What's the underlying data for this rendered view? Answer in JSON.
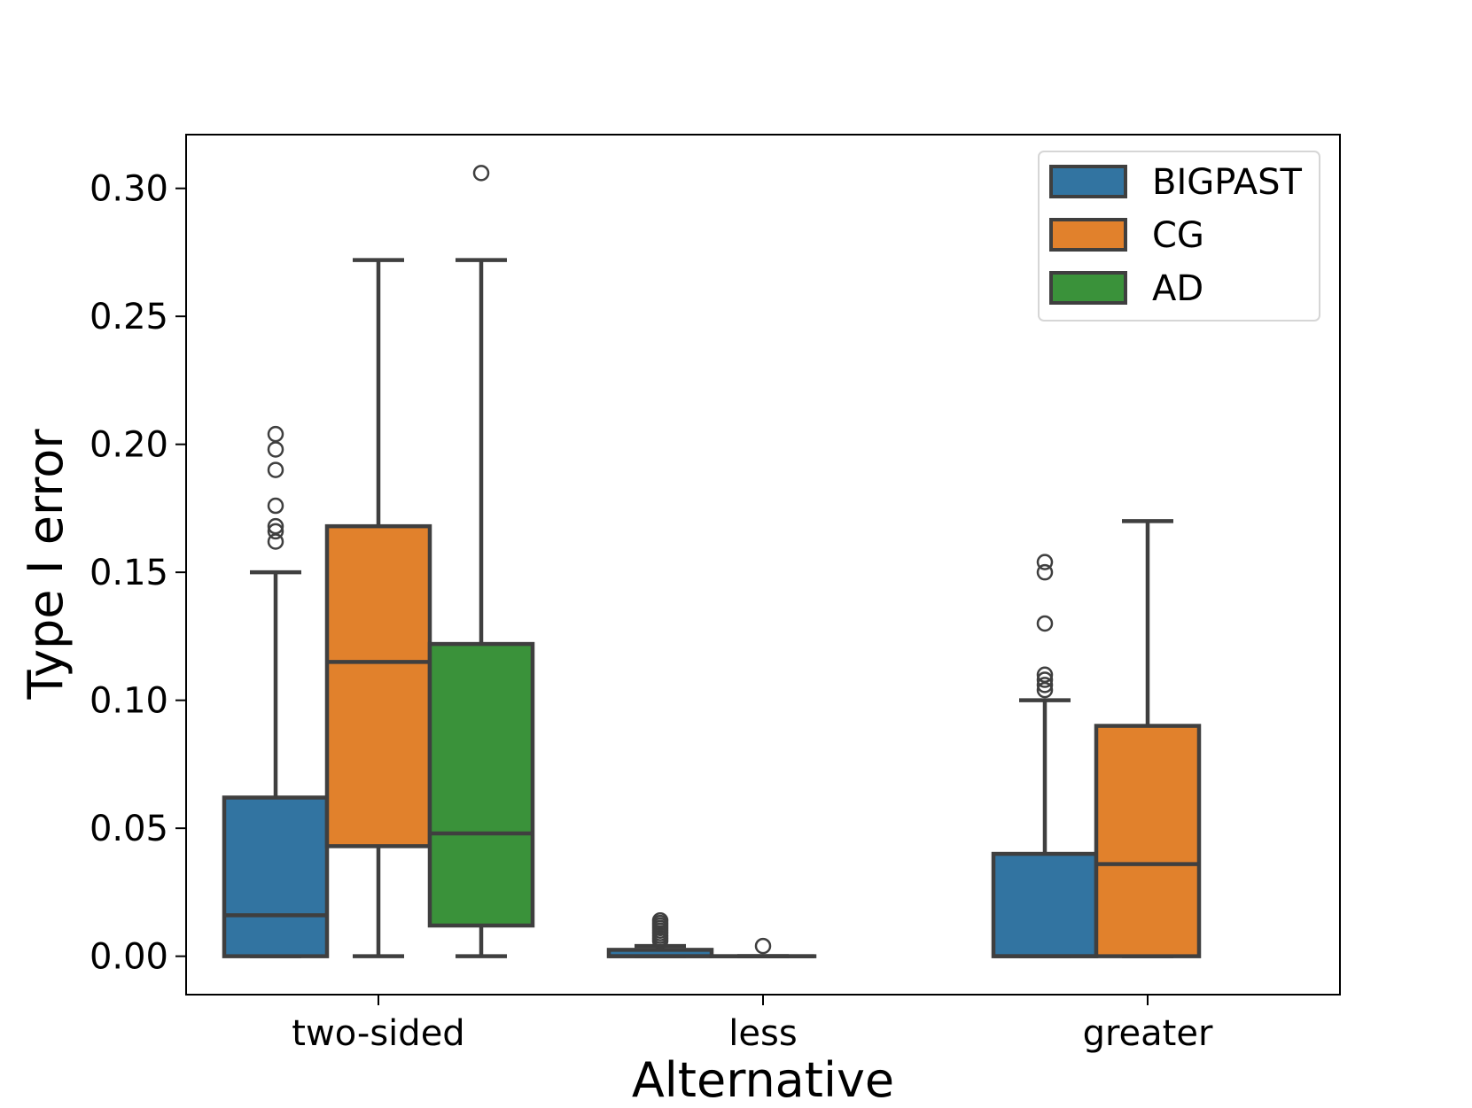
{
  "chart_data": {
    "type": "box",
    "title": "",
    "xlabel": "Alternative",
    "ylabel": "Type I error",
    "categories": [
      "two-sided",
      "less",
      "greater"
    ],
    "ylim": [
      -0.015,
      0.321
    ],
    "yticks": [
      0.0,
      0.05,
      0.1,
      0.15,
      0.2,
      0.25,
      0.3
    ],
    "ytick_labels": [
      "0.00",
      "0.05",
      "0.10",
      "0.15",
      "0.20",
      "0.25",
      "0.30"
    ],
    "legend_position": "top-right",
    "series": [
      {
        "name": "BIGPAST",
        "color": "#3274a1",
        "boxes": [
          {
            "category": "two-sided",
            "whisker_low": 0.0,
            "q1": 0.0,
            "median": 0.016,
            "q3": 0.062,
            "whisker_high": 0.15,
            "outliers": [
              0.162,
              0.166,
              0.168,
              0.176,
              0.19,
              0.198,
              0.204
            ]
          },
          {
            "category": "less",
            "whisker_low": 0.0,
            "q1": 0.0,
            "median": 0.0,
            "q3": 0.0025,
            "whisker_high": 0.004,
            "outliers": [
              0.006,
              0.007,
              0.008,
              0.009,
              0.01,
              0.011,
              0.012,
              0.013,
              0.014
            ]
          },
          {
            "category": "greater",
            "whisker_low": 0.0,
            "q1": 0.0,
            "median": 0.0,
            "q3": 0.04,
            "whisker_high": 0.1,
            "outliers": [
              0.104,
              0.106,
              0.108,
              0.11,
              0.13,
              0.15,
              0.154
            ]
          }
        ]
      },
      {
        "name": "CG",
        "color": "#e1812c",
        "boxes": [
          {
            "category": "two-sided",
            "whisker_low": 0.0,
            "q1": 0.043,
            "median": 0.115,
            "q3": 0.168,
            "whisker_high": 0.272,
            "outliers": []
          },
          {
            "category": "less",
            "whisker_low": 0.0,
            "q1": 0.0,
            "median": 0.0,
            "q3": 0.0,
            "whisker_high": 0.0,
            "outliers": [
              0.004
            ]
          },
          {
            "category": "greater",
            "whisker_low": 0.0,
            "q1": 0.0,
            "median": 0.036,
            "q3": 0.09,
            "whisker_high": 0.17,
            "outliers": []
          }
        ]
      },
      {
        "name": "AD",
        "color": "#3a923a",
        "boxes": [
          {
            "category": "two-sided",
            "whisker_low": 0.0,
            "q1": 0.012,
            "median": 0.048,
            "q3": 0.122,
            "whisker_high": 0.272,
            "outliers": [
              0.306
            ]
          }
        ]
      }
    ]
  }
}
